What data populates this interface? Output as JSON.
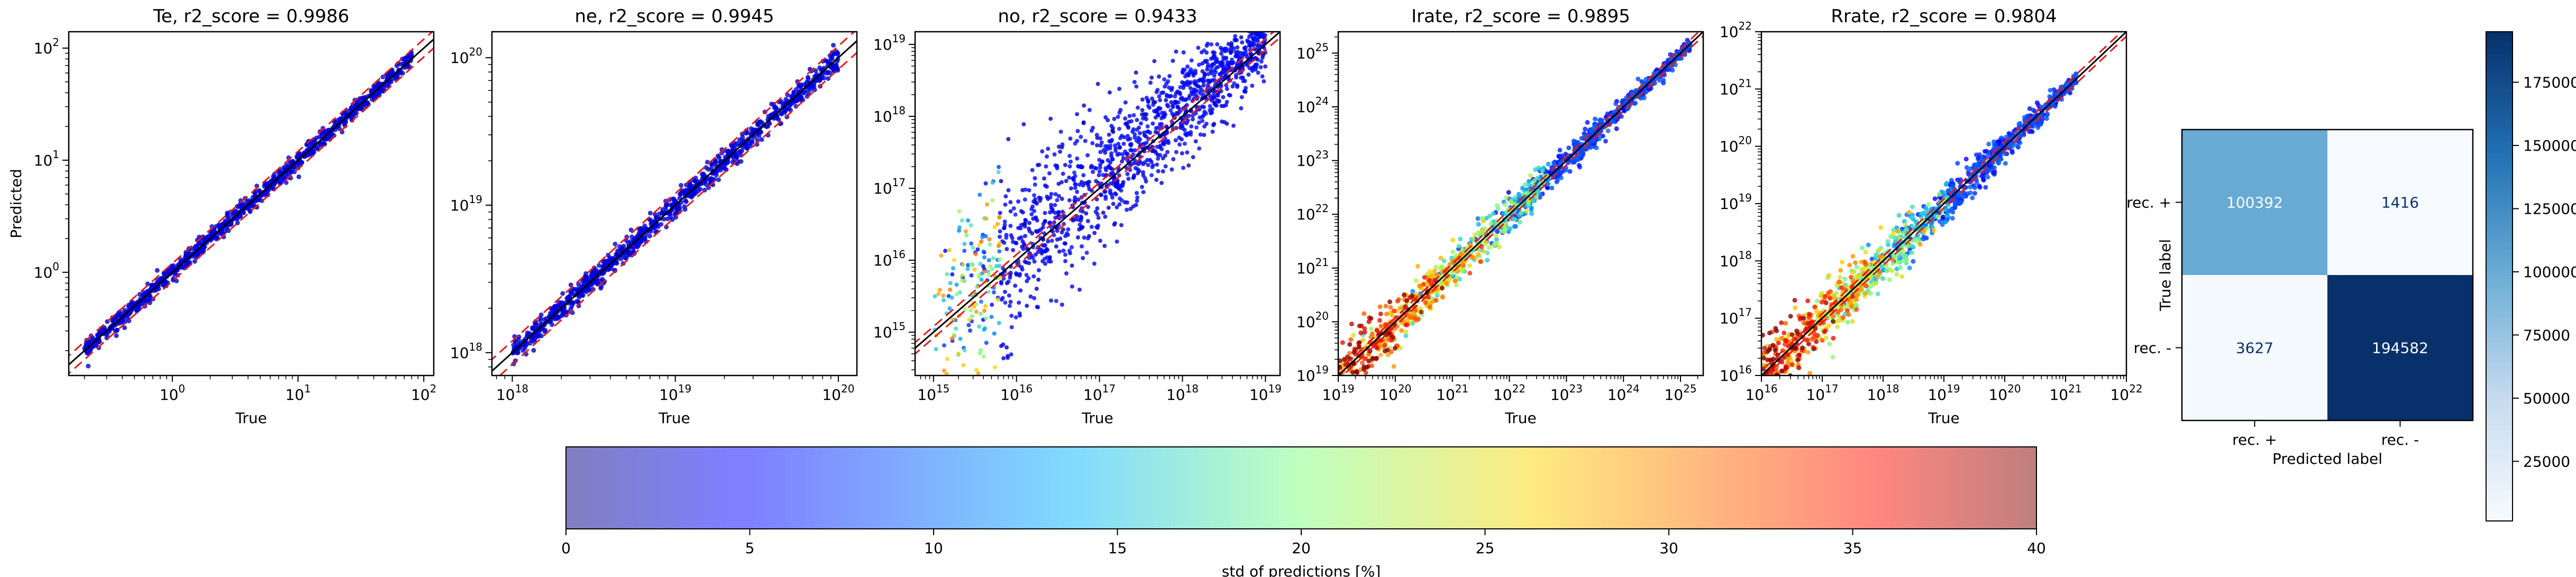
{
  "chart_data": [
    {
      "type": "scatter",
      "title": "Te, r2_score = 0.9986",
      "xlabel": "True",
      "ylabel": "Predicted",
      "xscale": "log",
      "yscale": "log",
      "xlim": [
        0.15,
        120
      ],
      "ylim": [
        0.12,
        140
      ],
      "xticks": [
        {
          "v": 1,
          "t": "10",
          "e": "0"
        },
        {
          "v": 10,
          "t": "10",
          "e": "1"
        },
        {
          "v": 100,
          "t": "10",
          "e": "2"
        }
      ],
      "yticks": [
        {
          "v": 1,
          "t": "10",
          "e": "0"
        },
        {
          "v": 10,
          "t": "10",
          "e": "1"
        },
        {
          "v": 100,
          "t": "10",
          "e": "2"
        }
      ],
      "data_range": [
        0.2,
        80
      ],
      "spread": 0.04,
      "band_factor": 1.2,
      "dominant_std": 2,
      "grid": false
    },
    {
      "type": "scatter",
      "title": "ne, r2_score = 0.9945",
      "xlabel": "True",
      "ylabel": "",
      "xscale": "log",
      "yscale": "log",
      "xlim": [
        7.5e+17,
        1.3e+20
      ],
      "ylim": [
        7e+17,
        1.5e+20
      ],
      "xticks": [
        {
          "v": 1e+18,
          "t": "10",
          "e": "18"
        },
        {
          "v": 1e+19,
          "t": "10",
          "e": "19"
        },
        {
          "v": 1e+20,
          "t": "10",
          "e": "20"
        }
      ],
      "yticks": [
        {
          "v": 1e+18,
          "t": "10",
          "e": "18"
        },
        {
          "v": 1e+19,
          "t": "10",
          "e": "19"
        },
        {
          "v": 1e+20,
          "t": "10",
          "e": "20"
        }
      ],
      "data_range": [
        1e+18,
        1e+20
      ],
      "spread": 0.04,
      "band_factor": 1.2,
      "dominant_std": 2,
      "grid": false
    },
    {
      "type": "scatter",
      "title": "no, r2_score = 0.9433",
      "xlabel": "True",
      "ylabel": "",
      "xscale": "log",
      "yscale": "log",
      "xlim": [
        600000000000000.0,
        1.5e+19
      ],
      "ylim": [
        250000000000000.0,
        1.5e+19
      ],
      "xticks": [
        {
          "v": 1000000000000000.0,
          "t": "10",
          "e": "15"
        },
        {
          "v": 1e+16,
          "t": "10",
          "e": "16"
        },
        {
          "v": 1e+17,
          "t": "10",
          "e": "17"
        },
        {
          "v": 1e+18,
          "t": "10",
          "e": "18"
        },
        {
          "v": 1e+19,
          "t": "10",
          "e": "19"
        }
      ],
      "yticks": [
        {
          "v": 1000000000000000.0,
          "t": "10",
          "e": "15"
        },
        {
          "v": 1e+16,
          "t": "10",
          "e": "16"
        },
        {
          "v": 1e+17,
          "t": "10",
          "e": "17"
        },
        {
          "v": 1e+18,
          "t": "10",
          "e": "18"
        },
        {
          "v": 1e+19,
          "t": "10",
          "e": "19"
        }
      ],
      "data_range": [
        1000000000000000.0,
        1e+19
      ],
      "spread": 0.45,
      "band_factor": 1.2,
      "dominant_std": 4,
      "grid": false
    },
    {
      "type": "scatter",
      "title": "Irate, r2_score = 0.9895",
      "xlabel": "True",
      "ylabel": "",
      "xscale": "log",
      "yscale": "log",
      "xlim": [
        1e+19,
        2.5e+25
      ],
      "ylim": [
        1e+19,
        2.5e+25
      ],
      "xticks": [
        {
          "v": 1e+19,
          "t": "10",
          "e": "19"
        },
        {
          "v": 1e+20,
          "t": "10",
          "e": "20"
        },
        {
          "v": 1e+21,
          "t": "10",
          "e": "21"
        },
        {
          "v": 1e+22,
          "t": "10",
          "e": "22"
        },
        {
          "v": 1e+23,
          "t": "10",
          "e": "23"
        },
        {
          "v": 1e+24,
          "t": "10",
          "e": "24"
        },
        {
          "v": 1e+25,
          "t": "10",
          "e": "25"
        }
      ],
      "yticks": [
        {
          "v": 1e+19,
          "t": "10",
          "e": "19"
        },
        {
          "v": 1e+20,
          "t": "10",
          "e": "20"
        },
        {
          "v": 1e+21,
          "t": "10",
          "e": "21"
        },
        {
          "v": 1e+22,
          "t": "10",
          "e": "22"
        },
        {
          "v": 1e+23,
          "t": "10",
          "e": "23"
        },
        {
          "v": 1e+24,
          "t": "10",
          "e": "24"
        },
        {
          "v": 1e+25,
          "t": "10",
          "e": "25"
        }
      ],
      "data_range": [
        1e+19,
        1.5e+25
      ],
      "spread": 0.18,
      "band_factor": 1.2,
      "dominant_std": 38,
      "grid": false
    },
    {
      "type": "scatter",
      "title": "Rrate, r2_score = 0.9804",
      "xlabel": "True",
      "ylabel": "",
      "xscale": "log",
      "yscale": "log",
      "xlim": [
        1e+16,
        1e+22
      ],
      "ylim": [
        1e+16,
        1e+22
      ],
      "xticks": [
        {
          "v": 1e+16,
          "t": "10",
          "e": "16"
        },
        {
          "v": 1e+17,
          "t": "10",
          "e": "17"
        },
        {
          "v": 1e+18,
          "t": "10",
          "e": "18"
        },
        {
          "v": 1e+19,
          "t": "10",
          "e": "19"
        },
        {
          "v": 1e+20,
          "t": "10",
          "e": "20"
        },
        {
          "v": 1e+21,
          "t": "10",
          "e": "21"
        },
        {
          "v": 1e+22,
          "t": "10",
          "e": "22"
        }
      ],
      "yticks": [
        {
          "v": 1e+16,
          "t": "10",
          "e": "16"
        },
        {
          "v": 1e+17,
          "t": "10",
          "e": "17"
        },
        {
          "v": 1e+18,
          "t": "10",
          "e": "18"
        },
        {
          "v": 1e+19,
          "t": "10",
          "e": "19"
        },
        {
          "v": 1e+20,
          "t": "10",
          "e": "20"
        },
        {
          "v": 1e+21,
          "t": "10",
          "e": "21"
        },
        {
          "v": 1e+22,
          "t": "10",
          "e": "22"
        }
      ],
      "data_range": [
        1e+16,
        1.5e+21
      ],
      "spread": 0.2,
      "band_factor": 1.2,
      "dominant_std": 38,
      "grid": false
    },
    {
      "type": "heatmap",
      "title": "",
      "xlabel": "Predicted label",
      "ylabel": "True label",
      "row_labels": [
        "rec. +",
        "rec. -"
      ],
      "col_labels": [
        "rec. +",
        "rec. -"
      ],
      "matrix": [
        [
          100392,
          1416
        ],
        [
          3627,
          194582
        ]
      ],
      "vmin": 1416,
      "vmax": 194582,
      "colorbar_ticks": [
        25000,
        50000,
        75000,
        100000,
        125000,
        150000,
        175000
      ],
      "colorbar_tick_labels": [
        "25000",
        "50000",
        "75000",
        "100000",
        "125000",
        "150000",
        "175000"
      ]
    }
  ],
  "colorbar": {
    "label": "std of predictions [%]",
    "range": [
      0,
      40
    ],
    "ticks": [
      "0",
      "5",
      "10",
      "15",
      "20",
      "25",
      "30",
      "35",
      "40"
    ],
    "colormap": "jet",
    "alpha": 0.5
  },
  "colors": {
    "reference_line": "#000000",
    "band_line": "#e41a1c",
    "axes": "#000000"
  }
}
